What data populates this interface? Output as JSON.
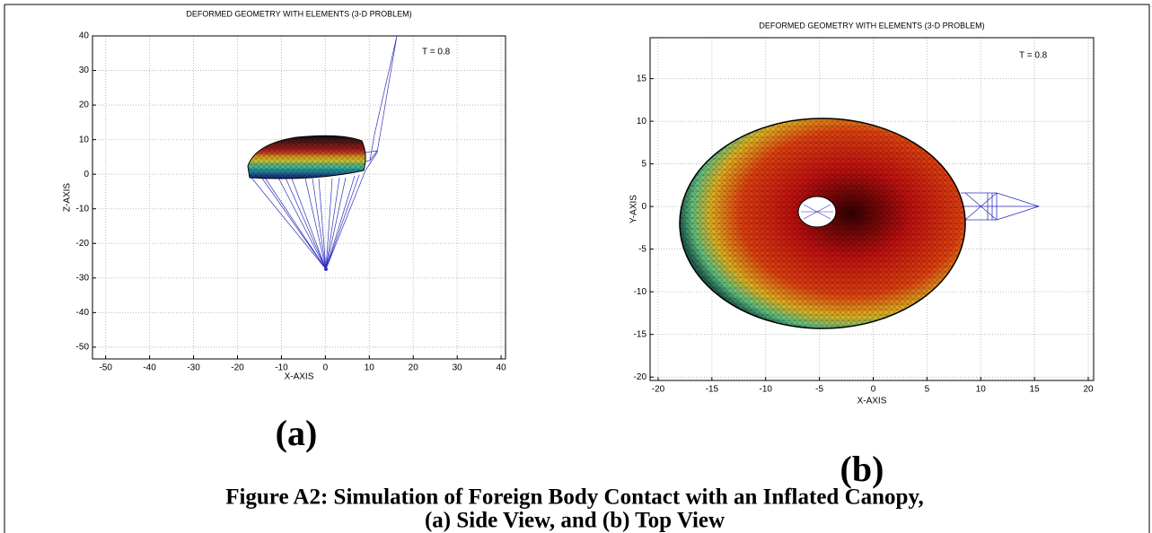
{
  "chart_data": [
    {
      "type": "mesh",
      "title": "DEFORMED GEOMETRY WITH ELEMENTS (3-D PROBLEM)",
      "annotation": "T = 0.8",
      "x_label": "X-AXIS",
      "y_label": "Z-AXIS",
      "xlim": [
        -53,
        41
      ],
      "ylim": [
        -53.4,
        40
      ],
      "xticks": [
        -50,
        -40,
        -30,
        -20,
        -10,
        0,
        10,
        20,
        30,
        40
      ],
      "yticks": [
        -50,
        -40,
        -30,
        -20,
        -10,
        0,
        10,
        20,
        30,
        40
      ],
      "grid": true
    },
    {
      "type": "mesh",
      "title": "DEFORMED GEOMETRY WITH ELEMENTS (3-D PROBLEM)",
      "annotation": "T = 0.8",
      "x_label": "X-AXIS",
      "y_label": "Y-AXIS",
      "xlim": [
        -20.75,
        20.5
      ],
      "ylim": [
        -20.4,
        19.8
      ],
      "xticks": [
        -20,
        -15,
        -10,
        -5,
        0,
        5,
        10,
        15,
        20
      ],
      "yticks": [
        -20,
        -15,
        -10,
        -5,
        0,
        5,
        10,
        15
      ],
      "grid": true
    }
  ],
  "panels": [
    "(a)",
    "(b)"
  ],
  "caption": [
    "Figure A2: Simulation of Foreign Body Contact with an Inflated Canopy,",
    "(a) Side View, and (b) Top View"
  ]
}
